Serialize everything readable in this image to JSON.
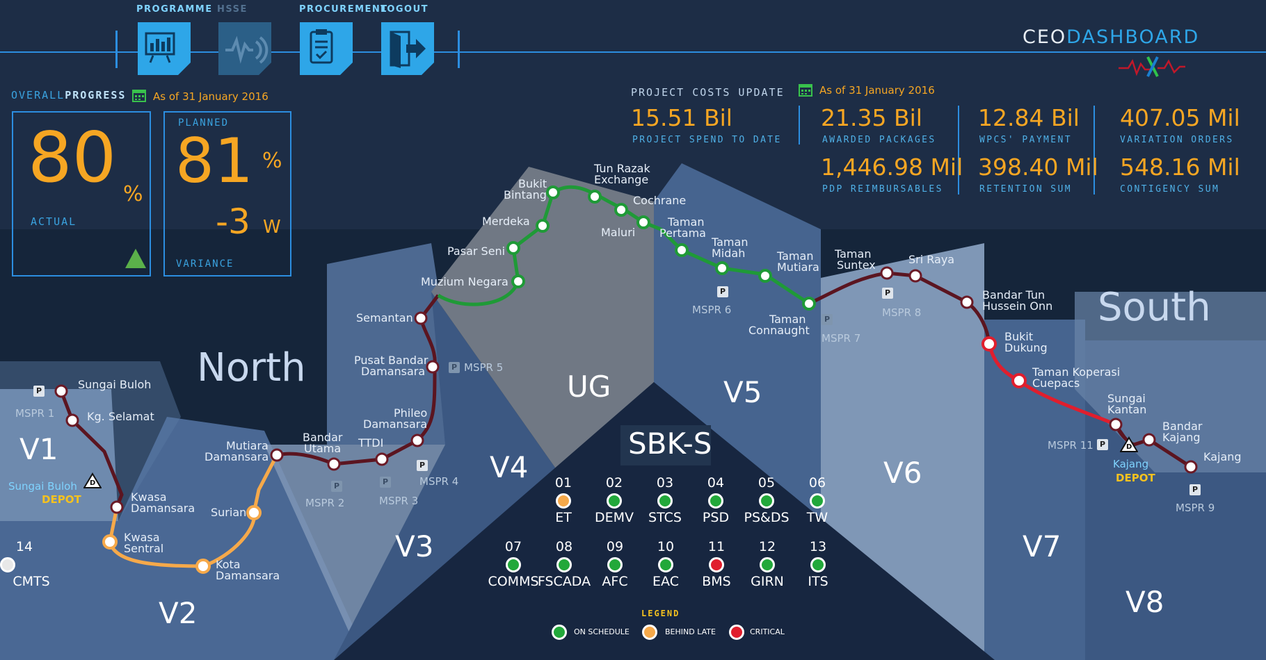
{
  "nav": {
    "items": [
      {
        "label": "PROGRAMME",
        "icon": "programme-chart-icon"
      },
      {
        "label": "HSSE",
        "icon": "hsse-heartbeat-icon"
      },
      {
        "label": "PROCUREMENT",
        "icon": "procurement-clipboard-icon"
      },
      {
        "label": "LOGOUT",
        "icon": "logout-door-icon"
      }
    ]
  },
  "brand": {
    "ceo": "CEO",
    "dashboard": "DASHBOARD"
  },
  "progress": {
    "title_a": "OVERALL",
    "title_b": "PROGRESS",
    "as_of": "As of 31 January 2016",
    "actual_value": "80",
    "actual_unit": "%",
    "actual_label": "ACTUAL",
    "planned_label": "PLANNED",
    "planned_value": "81",
    "planned_unit": "%",
    "variance_value": "-3",
    "variance_unit": "W",
    "variance_label": "VARIANCE"
  },
  "costs": {
    "title": "PROJECT COSTS UPDATE",
    "as_of": "As of 31 January 2016",
    "items": [
      {
        "value": "15.51 Bil",
        "label": "PROJECT SPEND TO DATE"
      },
      {
        "value": "21.35 Bil",
        "label": "AWARDED PACKAGES"
      },
      {
        "value": "12.84 Bil",
        "label": "WPCS' PAYMENT"
      },
      {
        "value": "407.05 Mil",
        "label": "VARIATION ORDERS"
      },
      {
        "value": "1,446.98 Mil",
        "label": "PDP REIMBURSABLES"
      },
      {
        "value": "398.40 Mil",
        "label": "RETENTION SUM"
      },
      {
        "value": "548.16 Mil",
        "label": "CONTIGENCY SUM"
      }
    ]
  },
  "regions": {
    "north": "North",
    "south": "South",
    "ug": "UG",
    "sbks": "SBK-S",
    "v1": "V1",
    "v2": "V2",
    "v3": "V3",
    "v4": "V4",
    "v5": "V5",
    "v6": "V6",
    "v7": "V7",
    "v8": "V8"
  },
  "stations": {
    "sungai_buloh": "Sungai Buloh",
    "kg_selamat": "Kg. Selamat",
    "kwasa_damansara_1": "Kwasa",
    "kwasa_damansara_2": "Damansara",
    "kwasa_sentral_1": "Kwasa",
    "kwasa_sentral_2": "Sentral",
    "kota_damansara_1": "Kota",
    "kota_damansara_2": "Damansara",
    "surian": "Surian",
    "mutiara_damansara_1": "Mutiara",
    "mutiara_damansara_2": "Damansara",
    "bandar_utama_1": "Bandar",
    "bandar_utama_2": "Utama",
    "ttdi": "TTDI",
    "phileo_damansara_1": "Phileo",
    "phileo_damansara_2": "Damansara",
    "pusat_bandar_damansara_1": "Pusat Bandar",
    "pusat_bandar_damansara_2": "Damansara",
    "semantan": "Semantan",
    "muzium_negara": "Muzium Negara",
    "pasar_seni": "Pasar Seni",
    "merdeka": "Merdeka",
    "bukit_bintang_1": "Bukit",
    "bukit_bintang_2": "Bintang",
    "tun_razak_exchange_1": "Tun Razak",
    "tun_razak_exchange_2": "Exchange",
    "cochrane": "Cochrane",
    "maluri": "Maluri",
    "taman_pertama_1": "Taman",
    "taman_pertama_2": "Pertama",
    "taman_midah_1": "Taman",
    "taman_midah_2": "Midah",
    "taman_mutiara_1": "Taman",
    "taman_mutiara_2": "Mutiara",
    "taman_connaught_1": "Taman",
    "taman_connaught_2": "Connaught",
    "taman_suntex_1": "Taman",
    "taman_suntex_2": "Suntex",
    "sri_raya": "Sri Raya",
    "bandar_tun_hussein_onn_1": "Bandar Tun",
    "bandar_tun_hussein_onn_2": "Hussein Onn",
    "bukit_dukung_1": "Bukit",
    "bukit_dukung_2": "Dukung",
    "taman_koperasi_cuepacs_1": "Taman Koperasi",
    "taman_koperasi_cuepacs_2": "Cuepacs",
    "sungai_kantan_1": "Sungai",
    "sungai_kantan_2": "Kantan",
    "bandar_kajang_1": "Bandar",
    "bandar_kajang_2": "Kajang",
    "kajang": "Kajang"
  },
  "depots": {
    "sungai_buloh": "Sungai Buloh",
    "kajang": "Kajang",
    "depot_label": "DEPOT",
    "p_marker": "P",
    "d_marker": "D"
  },
  "mspr": {
    "m1": "MSPR 1",
    "m2": "MSPR 2",
    "m3": "MSPR 3",
    "m4": "MSPR 4",
    "m5": "MSPR 5",
    "m6": "MSPR 6",
    "m7": "MSPR 7",
    "m8": "MSPR 8",
    "m9": "MSPR 9",
    "m11": "MSPR 11"
  },
  "packages": [
    {
      "num": "01",
      "name": "ET",
      "status": "behind"
    },
    {
      "num": "02",
      "name": "DEMV",
      "status": "on"
    },
    {
      "num": "03",
      "name": "STCS",
      "status": "on"
    },
    {
      "num": "04",
      "name": "PSD",
      "status": "on"
    },
    {
      "num": "05",
      "name": "PS&DS",
      "status": "on"
    },
    {
      "num": "06",
      "name": "TW",
      "status": "on"
    },
    {
      "num": "07",
      "name": "COMMS",
      "status": "on"
    },
    {
      "num": "08",
      "name": "FSCADA",
      "status": "on"
    },
    {
      "num": "09",
      "name": "AFC",
      "status": "on"
    },
    {
      "num": "10",
      "name": "EAC",
      "status": "on"
    },
    {
      "num": "11",
      "name": "BMS",
      "status": "critical"
    },
    {
      "num": "12",
      "name": "GIRN",
      "status": "on"
    },
    {
      "num": "13",
      "name": "ITS",
      "status": "on"
    },
    {
      "num": "14",
      "name": "CMTS",
      "status": "none"
    }
  ],
  "legend": {
    "title": "LEGEND",
    "on_schedule": "ON SCHEDULE",
    "behind_late": "BEHIND LATE",
    "critical": "CRITICAL"
  },
  "colors": {
    "on": "#22a83a",
    "behind": "#f6a94a",
    "critical": "#e01e2d",
    "none": "#ffffff",
    "accent": "#f6a623",
    "brand_blue": "#2c8ee0"
  }
}
